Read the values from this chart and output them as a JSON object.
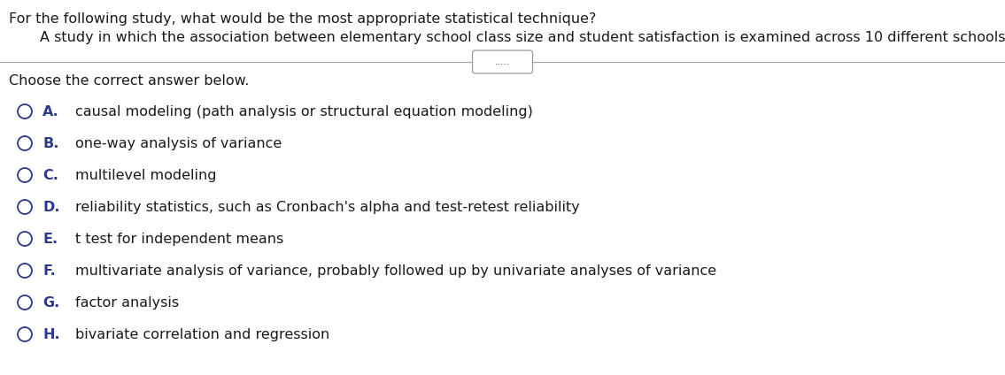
{
  "title_text": "For the following study, what would be the most appropriate statistical technique?",
  "study_text": "A study in which the association between elementary school class size and student satisfaction is examined across 10 different schools.",
  "choose_text": "Choose the correct answer below.",
  "options": [
    {
      "letter": "A.",
      "text": "causal modeling (path analysis or structural equation modeling)"
    },
    {
      "letter": "B.",
      "text": "one-way analysis of variance"
    },
    {
      "letter": "C.",
      "text": "multilevel modeling"
    },
    {
      "letter": "D.",
      "text": "reliability statistics, such as Cronbach's alpha and test-retest reliability"
    },
    {
      "letter": "E.",
      "text": "t test for independent means"
    },
    {
      "letter": "F.",
      "text": "multivariate analysis of variance, probably followed up by univariate analyses of variance"
    },
    {
      "letter": "G.",
      "text": "factor analysis"
    },
    {
      "letter": "H.",
      "text": "bivariate correlation and regression"
    }
  ],
  "bg_color": "#ffffff",
  "text_color": "#1a1a1a",
  "option_letter_color": "#2a3a8c",
  "circle_color": "#2a3a8c",
  "line_color": "#aaaaaa",
  "font_size_title": 11.5,
  "font_size_study": 11.5,
  "font_size_choose": 11.5,
  "font_size_options": 11.5,
  "divider_dots": ".....",
  "fig_width": 11.35,
  "fig_height": 4.24,
  "dpi": 100
}
